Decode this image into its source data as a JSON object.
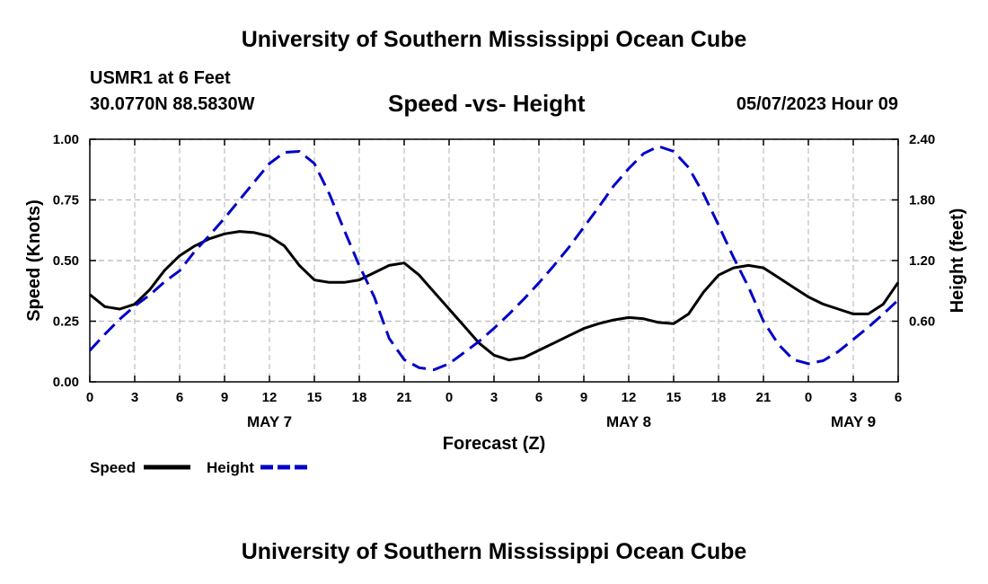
{
  "header": {
    "title": "University of Southern Mississippi Ocean Cube",
    "station": "USMR1 at 6 Feet",
    "location": "30.0770N  88.5830W",
    "chart_title": "Speed -vs- Height",
    "timestamp": "05/07/2023 Hour 09"
  },
  "footer": {
    "title": "University of Southern Mississippi Ocean Cube"
  },
  "colors": {
    "speed": "#000000",
    "height": "#0000c8",
    "grid": "#bfbfbf"
  },
  "chart_data": {
    "type": "line",
    "title": "Speed -vs- Height",
    "xlabel": "Forecast (Z)",
    "ylabel": "Speed (Knots)",
    "y2label": "Height (feet)",
    "xlim": [
      0,
      54
    ],
    "ylim": [
      0,
      1.0
    ],
    "y2lim": [
      0,
      2.4
    ],
    "x_ticks": [
      0,
      3,
      6,
      9,
      12,
      15,
      18,
      21,
      24,
      27,
      30,
      33,
      36,
      39,
      42,
      45,
      48,
      51,
      54
    ],
    "x_tick_labels": [
      "0",
      "3",
      "6",
      "9",
      "12",
      "15",
      "18",
      "21",
      "0",
      "3",
      "6",
      "9",
      "12",
      "15",
      "18",
      "21",
      "0",
      "3",
      "6"
    ],
    "day_labels": [
      {
        "x": 12,
        "label": "MAY 7"
      },
      {
        "x": 36,
        "label": "MAY 8"
      },
      {
        "x": 51,
        "label": "MAY 9"
      }
    ],
    "y_ticks": [
      0,
      0.25,
      0.5,
      0.75,
      1.0
    ],
    "y_tick_labels": [
      "0.00",
      "0.25",
      "0.50",
      "0.75",
      "1.00"
    ],
    "y2_ticks": [
      0.6,
      1.2,
      1.8,
      2.4
    ],
    "y2_tick_labels": [
      "0.60",
      "1.20",
      "1.80",
      "2.40"
    ],
    "grid": true,
    "legend_position": "bottom-left",
    "series": [
      {
        "name": "Speed",
        "axis": "left",
        "style": "solid",
        "x": [
          0,
          1,
          2,
          3,
          4,
          5,
          6,
          7,
          8,
          9,
          10,
          11,
          12,
          13,
          14,
          15,
          16,
          17,
          18,
          19,
          20,
          21,
          22,
          23,
          24,
          25,
          26,
          27,
          28,
          29,
          30,
          31,
          32,
          33,
          34,
          35,
          36,
          37,
          38,
          39,
          40,
          41,
          42,
          43,
          44,
          45,
          46,
          47,
          48,
          49,
          50,
          51,
          52,
          53,
          54
        ],
        "values": [
          0.36,
          0.31,
          0.3,
          0.32,
          0.38,
          0.46,
          0.52,
          0.56,
          0.59,
          0.61,
          0.62,
          0.615,
          0.6,
          0.56,
          0.48,
          0.42,
          0.41,
          0.41,
          0.42,
          0.45,
          0.48,
          0.49,
          0.44,
          0.37,
          0.3,
          0.23,
          0.16,
          0.11,
          0.09,
          0.1,
          0.13,
          0.16,
          0.19,
          0.22,
          0.24,
          0.255,
          0.265,
          0.26,
          0.245,
          0.24,
          0.28,
          0.37,
          0.44,
          0.47,
          0.48,
          0.47,
          0.43,
          0.39,
          0.35,
          0.32,
          0.3,
          0.28,
          0.28,
          0.32,
          0.41
        ]
      },
      {
        "name": "Height",
        "axis": "right",
        "style": "dashed",
        "x": [
          0,
          1,
          2,
          3,
          4,
          5,
          6,
          7,
          8,
          9,
          10,
          11,
          12,
          13,
          14,
          15,
          16,
          17,
          18,
          19,
          20,
          21,
          22,
          23,
          24,
          25,
          26,
          27,
          28,
          29,
          30,
          31,
          32,
          33,
          34,
          35,
          36,
          37,
          38,
          39,
          40,
          41,
          42,
          43,
          44,
          45,
          46,
          47,
          48,
          49,
          50,
          51,
          52,
          53,
          54
        ],
        "values": [
          0.31,
          0.47,
          0.62,
          0.75,
          0.86,
          0.99,
          1.1,
          1.29,
          1.45,
          1.62,
          1.8,
          1.98,
          2.16,
          2.27,
          2.28,
          2.16,
          1.86,
          1.5,
          1.15,
          0.84,
          0.43,
          0.22,
          0.14,
          0.12,
          0.18,
          0.29,
          0.4,
          0.53,
          0.67,
          0.82,
          0.98,
          1.15,
          1.33,
          1.53,
          1.73,
          1.94,
          2.11,
          2.26,
          2.33,
          2.28,
          2.12,
          1.86,
          1.55,
          1.23,
          0.94,
          0.6,
          0.37,
          0.22,
          0.18,
          0.21,
          0.3,
          0.42,
          0.54,
          0.67,
          0.81
        ]
      }
    ]
  }
}
